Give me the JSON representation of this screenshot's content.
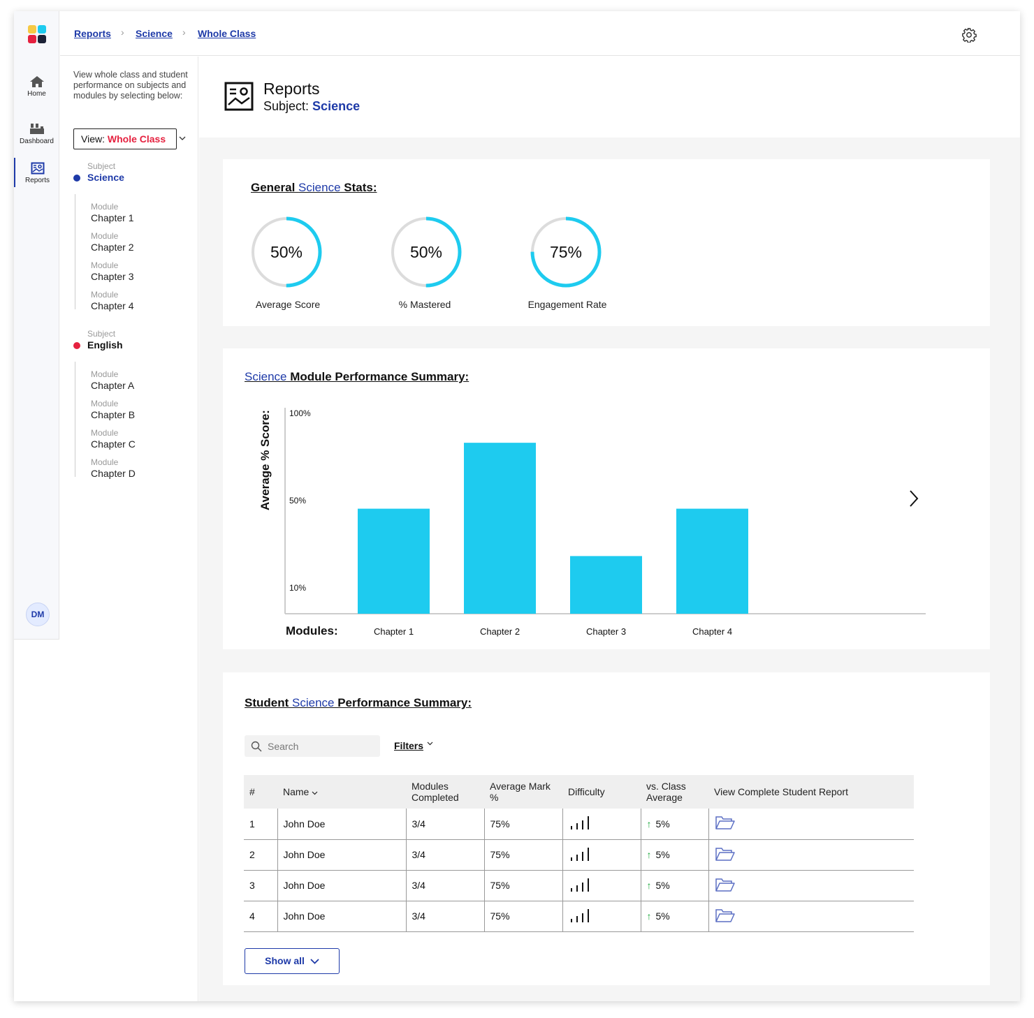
{
  "nav": {
    "items": [
      {
        "label": "Home",
        "icon": "home-icon"
      },
      {
        "label": "Dashboard",
        "icon": "dashboard-icon"
      },
      {
        "label": "Reports",
        "icon": "reports-icon"
      }
    ],
    "avatar_initials": "DM"
  },
  "breadcrumb": [
    "Reports",
    "Science",
    "Whole Class"
  ],
  "sidebar": {
    "intro": "View whole class and student performance on subjects and modules by selecting below:",
    "view_prefix": "View: ",
    "view_value": "Whole Class",
    "subjects": [
      {
        "label": "Subject",
        "name": "Science",
        "color": "#1e3aa8",
        "modules": [
          {
            "label": "Module",
            "name": "Chapter 1"
          },
          {
            "label": "Module",
            "name": "Chapter 2"
          },
          {
            "label": "Module",
            "name": "Chapter 3"
          },
          {
            "label": "Module",
            "name": "Chapter 4"
          }
        ]
      },
      {
        "label": "Subject",
        "name": "English",
        "color": "#e5213f",
        "modules": [
          {
            "label": "Module",
            "name": "Chapter A"
          },
          {
            "label": "Module",
            "name": "Chapter B"
          },
          {
            "label": "Module",
            "name": "Chapter C"
          },
          {
            "label": "Module",
            "name": "Chapter D"
          }
        ]
      }
    ]
  },
  "header": {
    "title": "Reports",
    "subject_prefix": "Subject: ",
    "subject": "Science"
  },
  "stats": {
    "title_pre": "General ",
    "title_hl": "Science",
    "title_post": " Stats:",
    "items": [
      {
        "value": "50%",
        "fraction": 0.5,
        "label": "Average Score"
      },
      {
        "value": "50%",
        "fraction": 0.5,
        "label": "% Mastered"
      },
      {
        "value": "75%",
        "fraction": 0.75,
        "label": "Engagement Rate"
      }
    ]
  },
  "module_summary": {
    "title_hl": "Science",
    "title_post": " Module Performance Summary:"
  },
  "chart_data": {
    "type": "bar",
    "ylabel": "Average % Score:",
    "xlabel": "Modules:",
    "y_ticks": [
      "100%",
      "50%",
      "10%"
    ],
    "categories": [
      "Chapter 1",
      "Chapter 2",
      "Chapter 3",
      "Chapter 4"
    ],
    "values": [
      51,
      83,
      28,
      51
    ],
    "color": "#1ecbef"
  },
  "students": {
    "title_pre": "Student ",
    "title_hl": "Science",
    "title_post": " Performance Summary:",
    "search_placeholder": "Search",
    "filters_label": "Filters",
    "columns": [
      "#",
      "Name",
      "Modules Completed",
      "Average Mark %",
      "Difficulty",
      "vs. Class Average",
      "View Complete Student Report"
    ],
    "rows": [
      {
        "num": "1",
        "name": "John Doe",
        "modules": "3/4",
        "mark": "75%",
        "vs": "5%"
      },
      {
        "num": "2",
        "name": "John Doe",
        "modules": "3/4",
        "mark": "75%",
        "vs": "5%"
      },
      {
        "num": "3",
        "name": "John Doe",
        "modules": "3/4",
        "mark": "75%",
        "vs": "5%"
      },
      {
        "num": "4",
        "name": "John Doe",
        "modules": "3/4",
        "mark": "75%",
        "vs": "5%"
      }
    ],
    "show_all_label": "Show all"
  },
  "colors": {
    "accent": "#1e3aa8",
    "english": "#e5213f",
    "ring": "#1ecbef",
    "up_arrow": "#1aa83a"
  }
}
